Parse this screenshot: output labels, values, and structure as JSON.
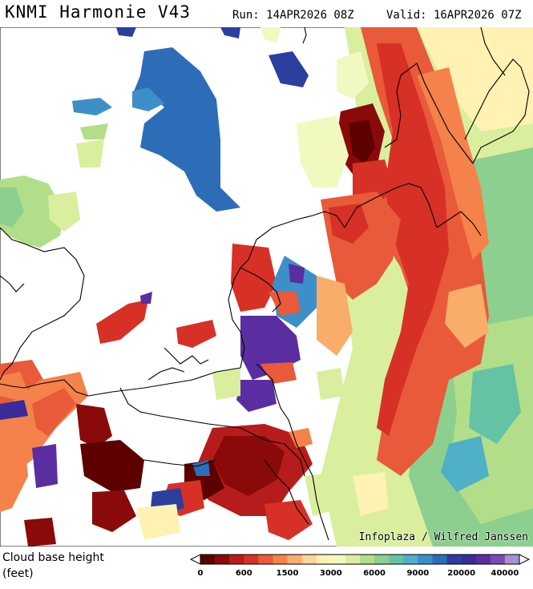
{
  "header": {
    "title": "KNMI Harmonie V43",
    "run": "Run: 14APR2026 08Z",
    "valid": "Valid: 16APR2026 07Z"
  },
  "map": {
    "credit": "Infoplaza / Wilfred Janssen"
  },
  "legend": {
    "title": "Cloud base height\n(feet)",
    "ticks": [
      "0",
      "600",
      "1500",
      "3000",
      "6000",
      "9000",
      "20000",
      "40000"
    ],
    "colors": [
      "#5c0000",
      "#8a0a0a",
      "#b71c1c",
      "#d73027",
      "#e85a3a",
      "#f4824a",
      "#f9ad6b",
      "#fdd49a",
      "#fff2b3",
      "#f2f9c0",
      "#d9ef9e",
      "#b2de8a",
      "#8ccf8e",
      "#66c2a5",
      "#4fb0c6",
      "#3d8fc9",
      "#2d6db8",
      "#2c3e9e",
      "#3b2a9a",
      "#5a2ea0",
      "#7a4cb0",
      "#a692d0"
    ]
  }
}
